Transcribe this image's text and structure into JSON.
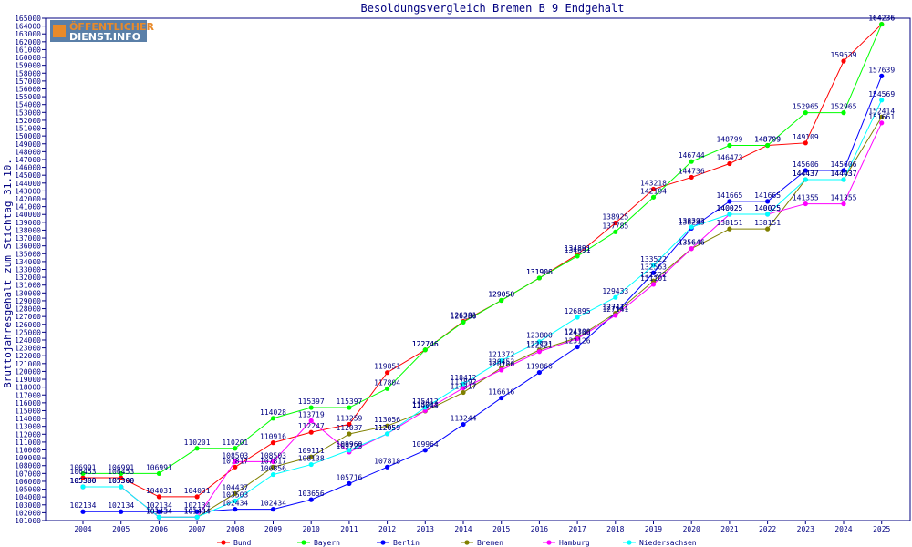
{
  "logo": {
    "line1": "ÖFFENTLICHER",
    "line2": "DIENST.INFO"
  },
  "chart_data": {
    "type": "line",
    "title": "Besoldungsvergleich Bremen B 9 Endgehalt",
    "xlabel": "",
    "ylabel": "Bruttojahresgehalt zum Stichtag 31.10.",
    "x": [
      "2004",
      "2005",
      "2006",
      "2007",
      "2008",
      "2009",
      "2010",
      "2011",
      "2012",
      "2013",
      "2014",
      "2015",
      "2016",
      "2017",
      "2018",
      "2019",
      "2020",
      "2021",
      "2022",
      "2023",
      "2024",
      "2025"
    ],
    "ylim": [
      101000,
      165000
    ],
    "ytick_step": 1000,
    "grid": false,
    "legend_position": "bottom",
    "series": [
      {
        "name": "Bund",
        "color": "#ff0000",
        "values": [
          106453,
          106453,
          104031,
          104031,
          107817,
          110916,
          112247,
          113259,
          119851,
          122746,
          126381,
          129050,
          131906,
          134891,
          138925,
          143218,
          144736,
          146473,
          148799,
          149109,
          159539,
          164236
        ]
      },
      {
        "name": "Bayern",
        "color": "#00ff00",
        "values": [
          106991,
          106991,
          106991,
          110201,
          110201,
          114028,
          115397,
          115397,
          117804,
          122746,
          126280,
          129050,
          131906,
          134691,
          137785,
          142194,
          146744,
          148799,
          148799,
          152965,
          152965,
          164236
        ]
      },
      {
        "name": "Berlin",
        "color": "#0000ff",
        "values": [
          102134,
          102134,
          102134,
          102134,
          102434,
          102434,
          103656,
          105716,
          107818,
          109964,
          113244,
          116616,
          119866,
          123126,
          127411,
          132563,
          138243,
          141665,
          141665,
          145606,
          145606,
          157639
        ]
      },
      {
        "name": "Bremen",
        "color": "#808000",
        "values": [
          105300,
          105300,
          101434,
          101434,
          104437,
          107817,
          109111,
          112037,
          113056,
          114944,
          117317,
          120452,
          122721,
          124300,
          127411,
          131522,
          135646,
          138151,
          138151,
          144437,
          144437,
          152414
        ]
      },
      {
        "name": "Hamburg",
        "color": "#ff00ff",
        "values": [
          105300,
          105300,
          101434,
          101434,
          108503,
          108503,
          113719,
          109723,
          112059,
          115012,
          117892,
          120180,
          122521,
          124166,
          127141,
          131101,
          135646,
          140025,
          140025,
          141355,
          141355,
          151661
        ]
      },
      {
        "name": "Niedersachsen",
        "color": "#00ffff",
        "values": [
          105300,
          105300,
          101434,
          101434,
          103503,
          106856,
          108138,
          109960,
          112059,
          115412,
          118412,
          121372,
          123800,
          126895,
          129433,
          133522,
          138393,
          140025,
          140025,
          144437,
          144437,
          154569
        ]
      }
    ]
  }
}
